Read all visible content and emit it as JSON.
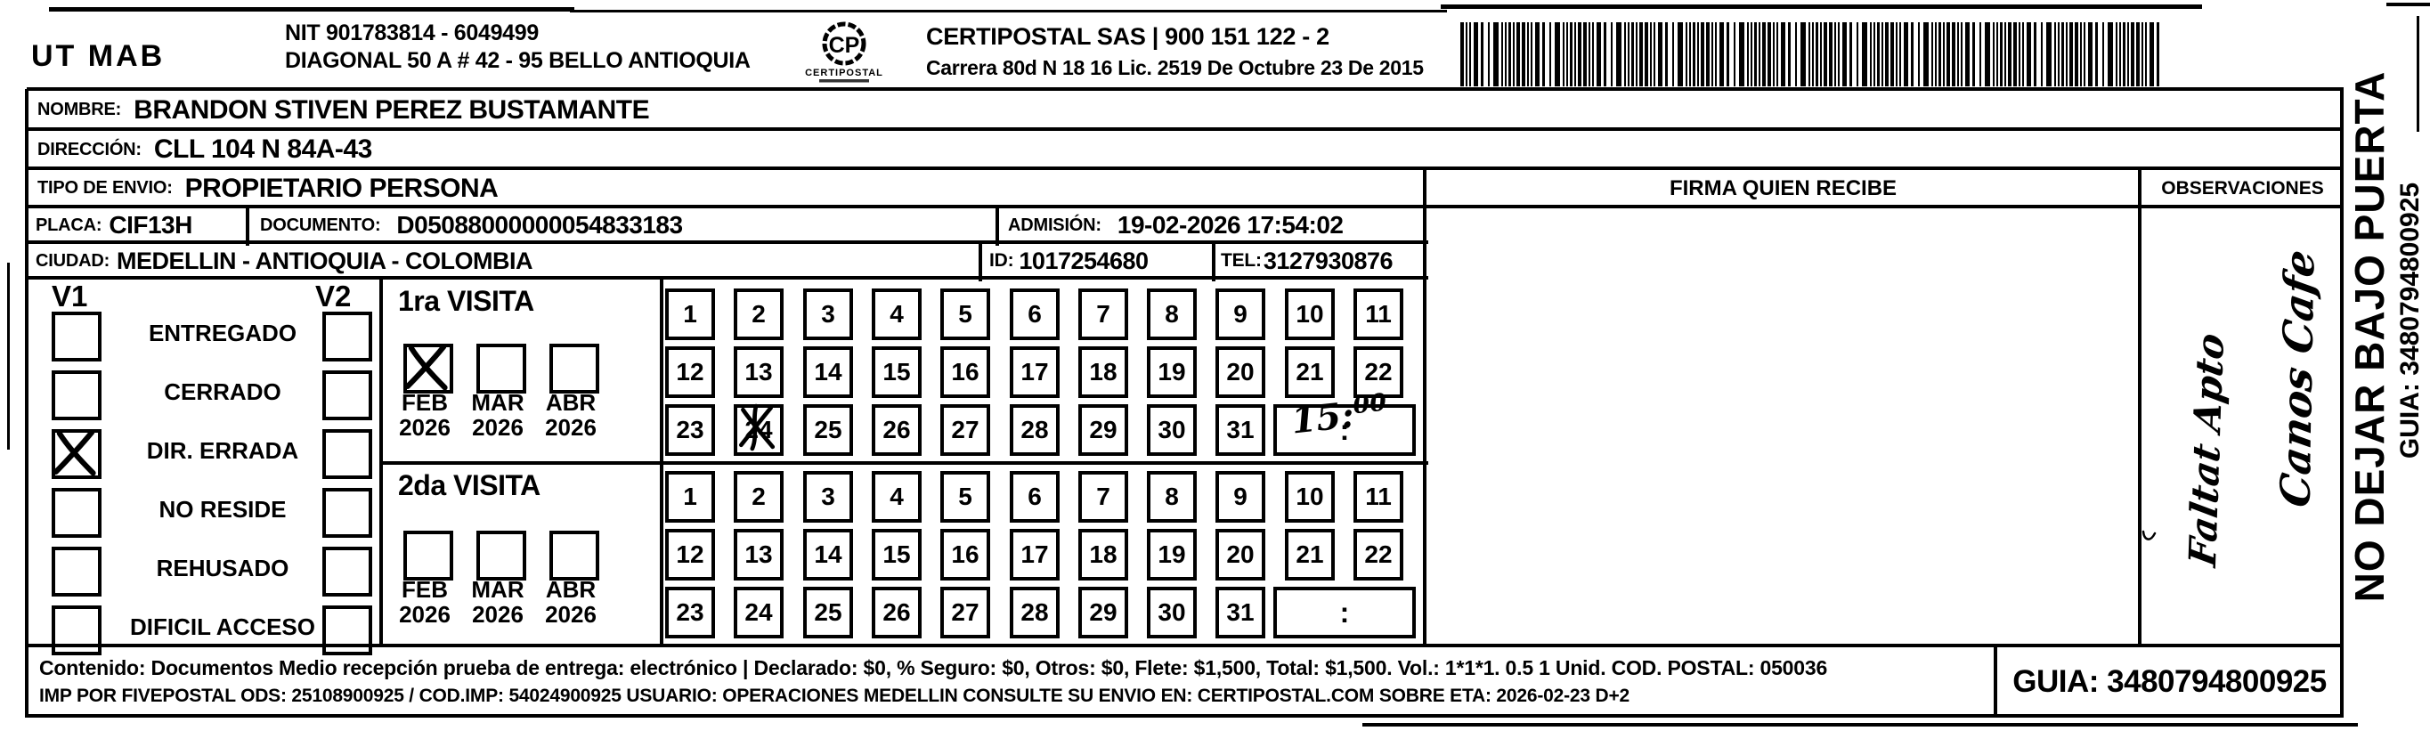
{
  "header": {
    "company": "UT MAB",
    "nit1": "NIT 901783814 - 6049499",
    "nit2": "DIAGONAL 50 A # 42 - 95  BELLO  ANTIOQUIA",
    "logo_title": "CERTIPOSTAL",
    "logo_monogram": "CP",
    "cert1": "CERTIPOSTAL SAS | 900 151 122 - 2",
    "cert2": "Carrera 80d N 18 16  Lic. 2519 De Octubre 23 De 2015"
  },
  "recipient": {
    "nombre_label": "NOMBRE:",
    "nombre": "BRANDON STIVEN PEREZ BUSTAMANTE",
    "direccion_label": "DIRECCIÓN:",
    "direccion": "CLL 104 N 84A-43",
    "tipo_label": "TIPO DE ENVIO:",
    "tipo": "PROPIETARIO PERSONA",
    "placa_label": "PLACA:",
    "placa": "CIF13H",
    "documento_label": "DOCUMENTO:",
    "documento": "D05088000000054833183",
    "admision_label": "ADMISIÓN:",
    "admision": "19-02-2026 17:54:02",
    "ciudad_label": "CIUDAD:",
    "ciudad": "MEDELLIN - ANTIOQUIA - COLOMBIA",
    "id_label": "ID:",
    "id": "1017254680",
    "tel_label": "TEL:",
    "tel": "3127930876"
  },
  "firma": {
    "header": "FIRMA QUIEN RECIBE"
  },
  "observaciones": {
    "header": "OBSERVACIONES",
    "note1": "Faltat Apto",
    "note2": "Canos Cafe"
  },
  "status": {
    "v1_header": "V1",
    "v2_header": "V2",
    "items": [
      {
        "label": "ENTREGADO",
        "v1": false,
        "v2": false
      },
      {
        "label": "CERRADO",
        "v1": false,
        "v2": false
      },
      {
        "label": "DIR. ERRADA",
        "v1": true,
        "v2": false
      },
      {
        "label": "NO RESIDE",
        "v1": false,
        "v2": false
      },
      {
        "label": "REHUSADO",
        "v1": false,
        "v2": false
      },
      {
        "label": "DIFICIL ACCESO",
        "v1": false,
        "v2": false
      }
    ]
  },
  "visits": {
    "days": [
      1,
      2,
      3,
      4,
      5,
      6,
      7,
      8,
      9,
      10,
      11,
      12,
      13,
      14,
      15,
      16,
      17,
      18,
      19,
      20,
      21,
      22,
      23,
      24,
      25,
      26,
      27,
      28,
      29,
      30,
      31
    ],
    "time_colon": ":",
    "first": {
      "title": "1ra VISITA",
      "months": [
        {
          "month": "FEB",
          "year": "2026",
          "checked": true
        },
        {
          "month": "MAR",
          "year": "2026",
          "checked": false
        },
        {
          "month": "ABR",
          "year": "2026",
          "checked": false
        }
      ],
      "crossed_day": 24,
      "time": "15:00"
    },
    "second": {
      "title": "2da VISITA",
      "months": [
        {
          "month": "FEB",
          "year": "2026",
          "checked": false
        },
        {
          "month": "MAR",
          "year": "2026",
          "checked": false
        },
        {
          "month": "ABR",
          "year": "2026",
          "checked": false
        }
      ],
      "crossed_day": null,
      "time": ""
    }
  },
  "footer": {
    "line1": "Contenido: Documentos Medio recepción prueba de entrega: electrónico | Declarado: $0, % Seguro: $0, Otros: $0, Flete: $1,500, Total: $1,500. Vol.: 1*1*1. 0.5  1 Unid. COD. POSTAL: 050036",
    "line2": "IMP POR FIVEPOSTAL ODS: 25108900925 / COD.IMP: 54024900925 USUARIO: OPERACIONES MEDELLIN CONSULTE SU ENVIO EN: CERTIPOSTAL.COM SOBRE ETA: 2026-02-23 D+2",
    "guia": "GUIA: 3480794800925"
  },
  "side": {
    "warning": "NO DEJAR BAJO PUERTA",
    "guia": "GUIA: 3480794800925"
  }
}
